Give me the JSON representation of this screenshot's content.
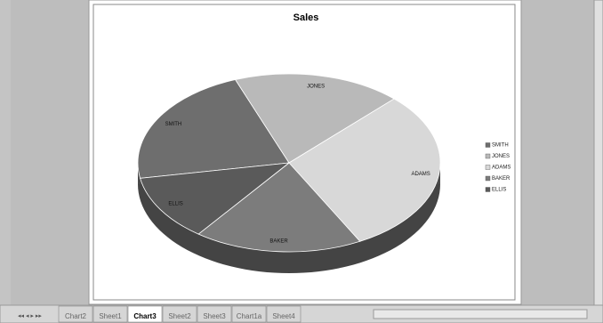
{
  "chart_data": {
    "type": "pie",
    "title": "Sales",
    "categories": [
      "SMITH",
      "JONES",
      "ADAMS",
      "BAKER",
      "ELLIS"
    ],
    "values": [
      22,
      18,
      30,
      18,
      12
    ],
    "colors": [
      "#6e6e6e",
      "#b9b9b9",
      "#d8d8d8",
      "#7c7c7c",
      "#5a5a5a"
    ],
    "legend": "right"
  },
  "sheet_tabs": [
    "Chart2",
    "Sheet1",
    "Chart3",
    "Sheet2",
    "Sheet3",
    "Chart1a",
    "Sheet4"
  ],
  "active_tab": 2
}
